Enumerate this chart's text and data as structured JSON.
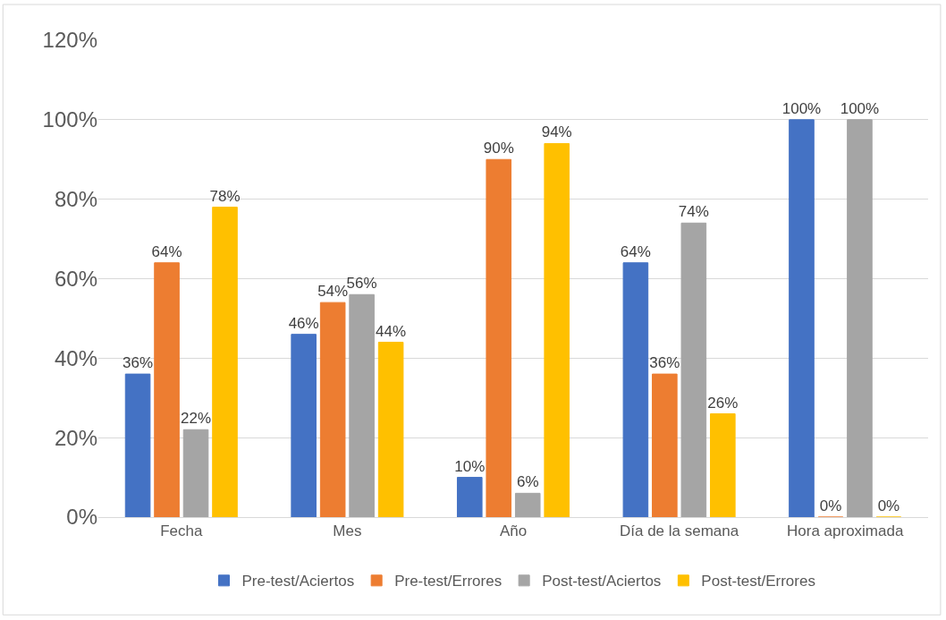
{
  "chart_data": {
    "type": "bar",
    "categories": [
      "Fecha",
      "Mes",
      "Año",
      "Día de la semana",
      "Hora aproximada"
    ],
    "series": [
      {
        "name": "Pre-test/Aciertos",
        "color": "#4472c4",
        "values": [
          36,
          46,
          10,
          64,
          100
        ],
        "value_labels": [
          "36%",
          "46%",
          "10%",
          "64%",
          "100%"
        ]
      },
      {
        "name": "Pre-test/Errores",
        "color": "#ed7d31",
        "values": [
          64,
          54,
          90,
          36,
          0
        ],
        "value_labels": [
          "64%",
          "54%",
          "90%",
          "36%",
          "0%"
        ]
      },
      {
        "name": "Post-test/Aciertos",
        "color": "#a5a5a5",
        "values": [
          22,
          56,
          6,
          74,
          100
        ],
        "value_labels": [
          "22%",
          "56%",
          "6%",
          "74%",
          "100%"
        ]
      },
      {
        "name": "Post-test/Errores",
        "color": "#ffc000",
        "values": [
          78,
          44,
          94,
          26,
          0
        ],
        "value_labels": [
          "78%",
          "44%",
          "94%",
          "26%",
          "0%"
        ]
      }
    ],
    "ylim": [
      0,
      120
    ],
    "yticks": [
      {
        "value": 0,
        "label": "0%"
      },
      {
        "value": 20,
        "label": "20%"
      },
      {
        "value": 40,
        "label": "40%"
      },
      {
        "value": 60,
        "label": "60%"
      },
      {
        "value": 80,
        "label": "80%"
      },
      {
        "value": 100,
        "label": "100%"
      },
      {
        "value": 120,
        "label": "120%"
      }
    ],
    "grid": "y",
    "legend": "bottom"
  }
}
